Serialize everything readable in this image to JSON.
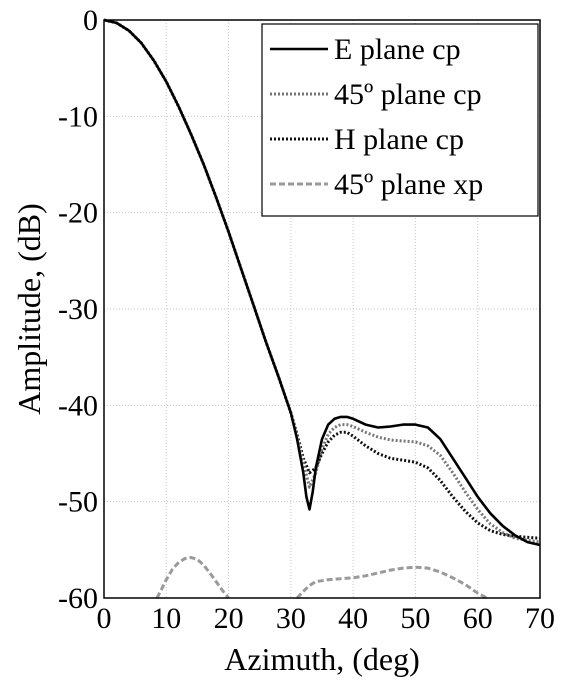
{
  "chart_data": {
    "type": "line",
    "title": "",
    "xlabel": "Azimuth, (deg)",
    "ylabel": "Amplitude, (dB)",
    "xlim": [
      0,
      70
    ],
    "ylim": [
      -60,
      0
    ],
    "xticks": [
      0,
      10,
      20,
      30,
      40,
      50,
      60,
      70
    ],
    "yticks": [
      0,
      -10,
      -20,
      -30,
      -40,
      -50,
      -60
    ],
    "xtick_labels": [
      "0",
      "10",
      "20",
      "30",
      "40",
      "50",
      "60",
      "70"
    ],
    "ytick_labels": [
      "0",
      "-10",
      "-20",
      "-30",
      "-40",
      "-50",
      "-60"
    ],
    "grid": true,
    "legend_position": "top-right",
    "series": [
      {
        "name": "E plane cp",
        "style": "solid",
        "color": "#000000",
        "x": [
          0,
          2,
          4,
          6,
          8,
          10,
          12,
          14,
          16,
          18,
          20,
          22,
          24,
          26,
          28,
          30,
          31,
          32,
          32.5,
          33,
          33.5,
          34,
          35,
          36,
          37,
          38,
          39,
          40,
          42,
          44,
          46,
          48,
          50,
          52,
          54,
          56,
          58,
          60,
          62,
          64,
          66,
          68,
          70
        ],
        "y": [
          0,
          -0.3,
          -1.1,
          -2.4,
          -4.2,
          -6.4,
          -9.0,
          -11.9,
          -15.0,
          -18.4,
          -22.0,
          -25.8,
          -29.6,
          -33.4,
          -37.0,
          -40.8,
          -43.5,
          -47.0,
          -49.5,
          -50.8,
          -49.0,
          -46.5,
          -43.5,
          -42.0,
          -41.4,
          -41.2,
          -41.2,
          -41.4,
          -42.0,
          -42.3,
          -42.2,
          -42.0,
          -42.0,
          -42.3,
          -43.5,
          -45.5,
          -47.5,
          -49.5,
          -51.2,
          -52.5,
          -53.5,
          -54.2,
          -54.5
        ]
      },
      {
        "name": "45º plane cp",
        "style": "dotted",
        "color": "#777777",
        "x": [
          0,
          2,
          4,
          6,
          8,
          10,
          12,
          14,
          16,
          18,
          20,
          22,
          24,
          26,
          28,
          30,
          31,
          32,
          33,
          34,
          35,
          36,
          37,
          38,
          39,
          40,
          42,
          44,
          46,
          48,
          50,
          52,
          54,
          56,
          58,
          60,
          62,
          64,
          66,
          68,
          70
        ],
        "y": [
          0,
          -0.3,
          -1.1,
          -2.4,
          -4.2,
          -6.4,
          -9.0,
          -11.9,
          -15.0,
          -18.4,
          -22.0,
          -25.8,
          -29.6,
          -33.4,
          -37.0,
          -40.8,
          -43.2,
          -46.0,
          -48.5,
          -47.0,
          -44.5,
          -43.0,
          -42.3,
          -42.0,
          -42.0,
          -42.2,
          -42.8,
          -43.3,
          -43.6,
          -43.7,
          -43.8,
          -44.2,
          -45.2,
          -47.0,
          -49.0,
          -50.8,
          -52.3,
          -53.2,
          -53.8,
          -54.0,
          -54.2
        ]
      },
      {
        "name": "H plane cp",
        "style": "dotted",
        "color": "#111111",
        "x": [
          0,
          2,
          4,
          6,
          8,
          10,
          12,
          14,
          16,
          18,
          20,
          22,
          24,
          26,
          28,
          30,
          31,
          32,
          33,
          34,
          35,
          36,
          37,
          38,
          39,
          40,
          42,
          44,
          46,
          48,
          50,
          52,
          54,
          56,
          58,
          60,
          62,
          64,
          66,
          68,
          70
        ],
        "y": [
          0,
          -0.3,
          -1.1,
          -2.4,
          -4.2,
          -6.4,
          -9.0,
          -11.9,
          -15.0,
          -18.4,
          -22.0,
          -25.8,
          -29.6,
          -33.4,
          -37.0,
          -40.8,
          -43.0,
          -45.5,
          -47.0,
          -46.5,
          -45.0,
          -43.8,
          -43.1,
          -42.8,
          -42.8,
          -43.2,
          -44.2,
          -45.0,
          -45.5,
          -45.7,
          -45.9,
          -46.5,
          -47.8,
          -49.5,
          -51.0,
          -52.2,
          -53.0,
          -53.4,
          -53.6,
          -53.7,
          -53.8
        ]
      },
      {
        "name": "45º plane xp",
        "style": "dashed",
        "color": "#9a9a9a",
        "segments": [
          {
            "x": [
              8.5,
              9,
              10,
              11,
              12,
              13,
              14,
              15,
              16,
              17,
              18,
              19,
              20
            ],
            "y": [
              -60,
              -59.4,
              -58.1,
              -57.0,
              -56.3,
              -55.9,
              -55.8,
              -56.0,
              -56.6,
              -57.4,
              -58.3,
              -59.2,
              -60
            ]
          },
          {
            "x": [
              31,
              32,
              33,
              34,
              35,
              36,
              38,
              40,
              42,
              44,
              46,
              48,
              50,
              52,
              54,
              56,
              58,
              60,
              61.5
            ],
            "y": [
              -60,
              -59.3,
              -58.7,
              -58.3,
              -58.2,
              -58.1,
              -58.0,
              -57.9,
              -57.7,
              -57.4,
              -57.1,
              -56.9,
              -56.8,
              -56.9,
              -57.3,
              -57.9,
              -58.6,
              -59.5,
              -60
            ]
          }
        ]
      }
    ]
  }
}
